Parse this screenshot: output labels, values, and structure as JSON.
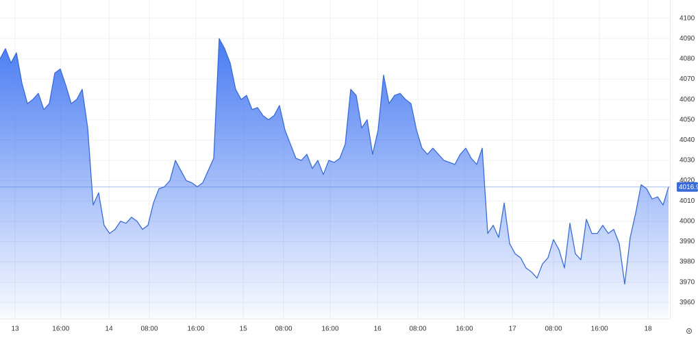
{
  "chart_data": {
    "type": "area",
    "series": [
      {
        "color": "#3a6bd8",
        "values": [
          4080,
          4085,
          4078,
          4083,
          4068,
          4058,
          4060,
          4063,
          4055,
          4058,
          4073,
          4075,
          4067,
          4058,
          4060,
          4065,
          4046,
          4008,
          4014,
          3998,
          3994,
          3996,
          4000,
          3999,
          4002,
          4000,
          3996,
          3998,
          4009,
          4016,
          4017,
          4020,
          4030,
          4025,
          4020,
          4019,
          4017,
          4019,
          4025,
          4031,
          4090,
          4085,
          4078,
          4065,
          4060,
          4062,
          4055,
          4056,
          4052,
          4050,
          4052,
          4057,
          4045,
          4038,
          4031,
          4030,
          4033,
          4026,
          4030,
          4023,
          4030,
          4029,
          4031,
          4038,
          4065,
          4062,
          4046,
          4050,
          4033,
          4045,
          4072,
          4058,
          4062,
          4063,
          4060,
          4058,
          4045,
          4036,
          4033,
          4036,
          4033,
          4030,
          4029,
          4028,
          4033,
          4036,
          4031,
          4028,
          4036,
          3994,
          3998,
          3992,
          4009,
          3989,
          3984,
          3982,
          3977,
          3975,
          3972,
          3979,
          3982,
          3991,
          3986,
          3977,
          3999,
          3984,
          3981,
          4001,
          3994,
          3994,
          3998,
          3994,
          3996,
          3989,
          3969,
          3992,
          4004,
          4018,
          4016,
          4011,
          4012,
          4008,
          4016.9
        ]
      }
    ],
    "xlim": [
      0,
      122.25
    ],
    "xticks": [
      {
        "value": 2.75,
        "label": "13"
      },
      {
        "value": 11.1,
        "label": "16:00"
      },
      {
        "value": 19.9,
        "label": "14"
      },
      {
        "value": 27.25,
        "label": "08:00"
      },
      {
        "value": 35.75,
        "label": "16:00"
      },
      {
        "value": 44.4,
        "label": "15"
      },
      {
        "value": 51.75,
        "label": "08:00"
      },
      {
        "value": 60.25,
        "label": "16:00"
      },
      {
        "value": 68.9,
        "label": "16"
      },
      {
        "value": 76.25,
        "label": "08:00"
      },
      {
        "value": 84.75,
        "label": "16:00"
      },
      {
        "value": 93.5,
        "label": "17"
      },
      {
        "value": 101,
        "label": "08:00"
      },
      {
        "value": 109.4,
        "label": "16:00"
      },
      {
        "value": 118.25,
        "label": "18"
      }
    ],
    "ylim": [
      3952,
      4109
    ],
    "yticks": [
      3960,
      3970,
      3980,
      3990,
      4000,
      4010,
      4020,
      4030,
      4040,
      4050,
      4060,
      4070,
      4080,
      4090,
      4100
    ],
    "grid": true
  }
}
